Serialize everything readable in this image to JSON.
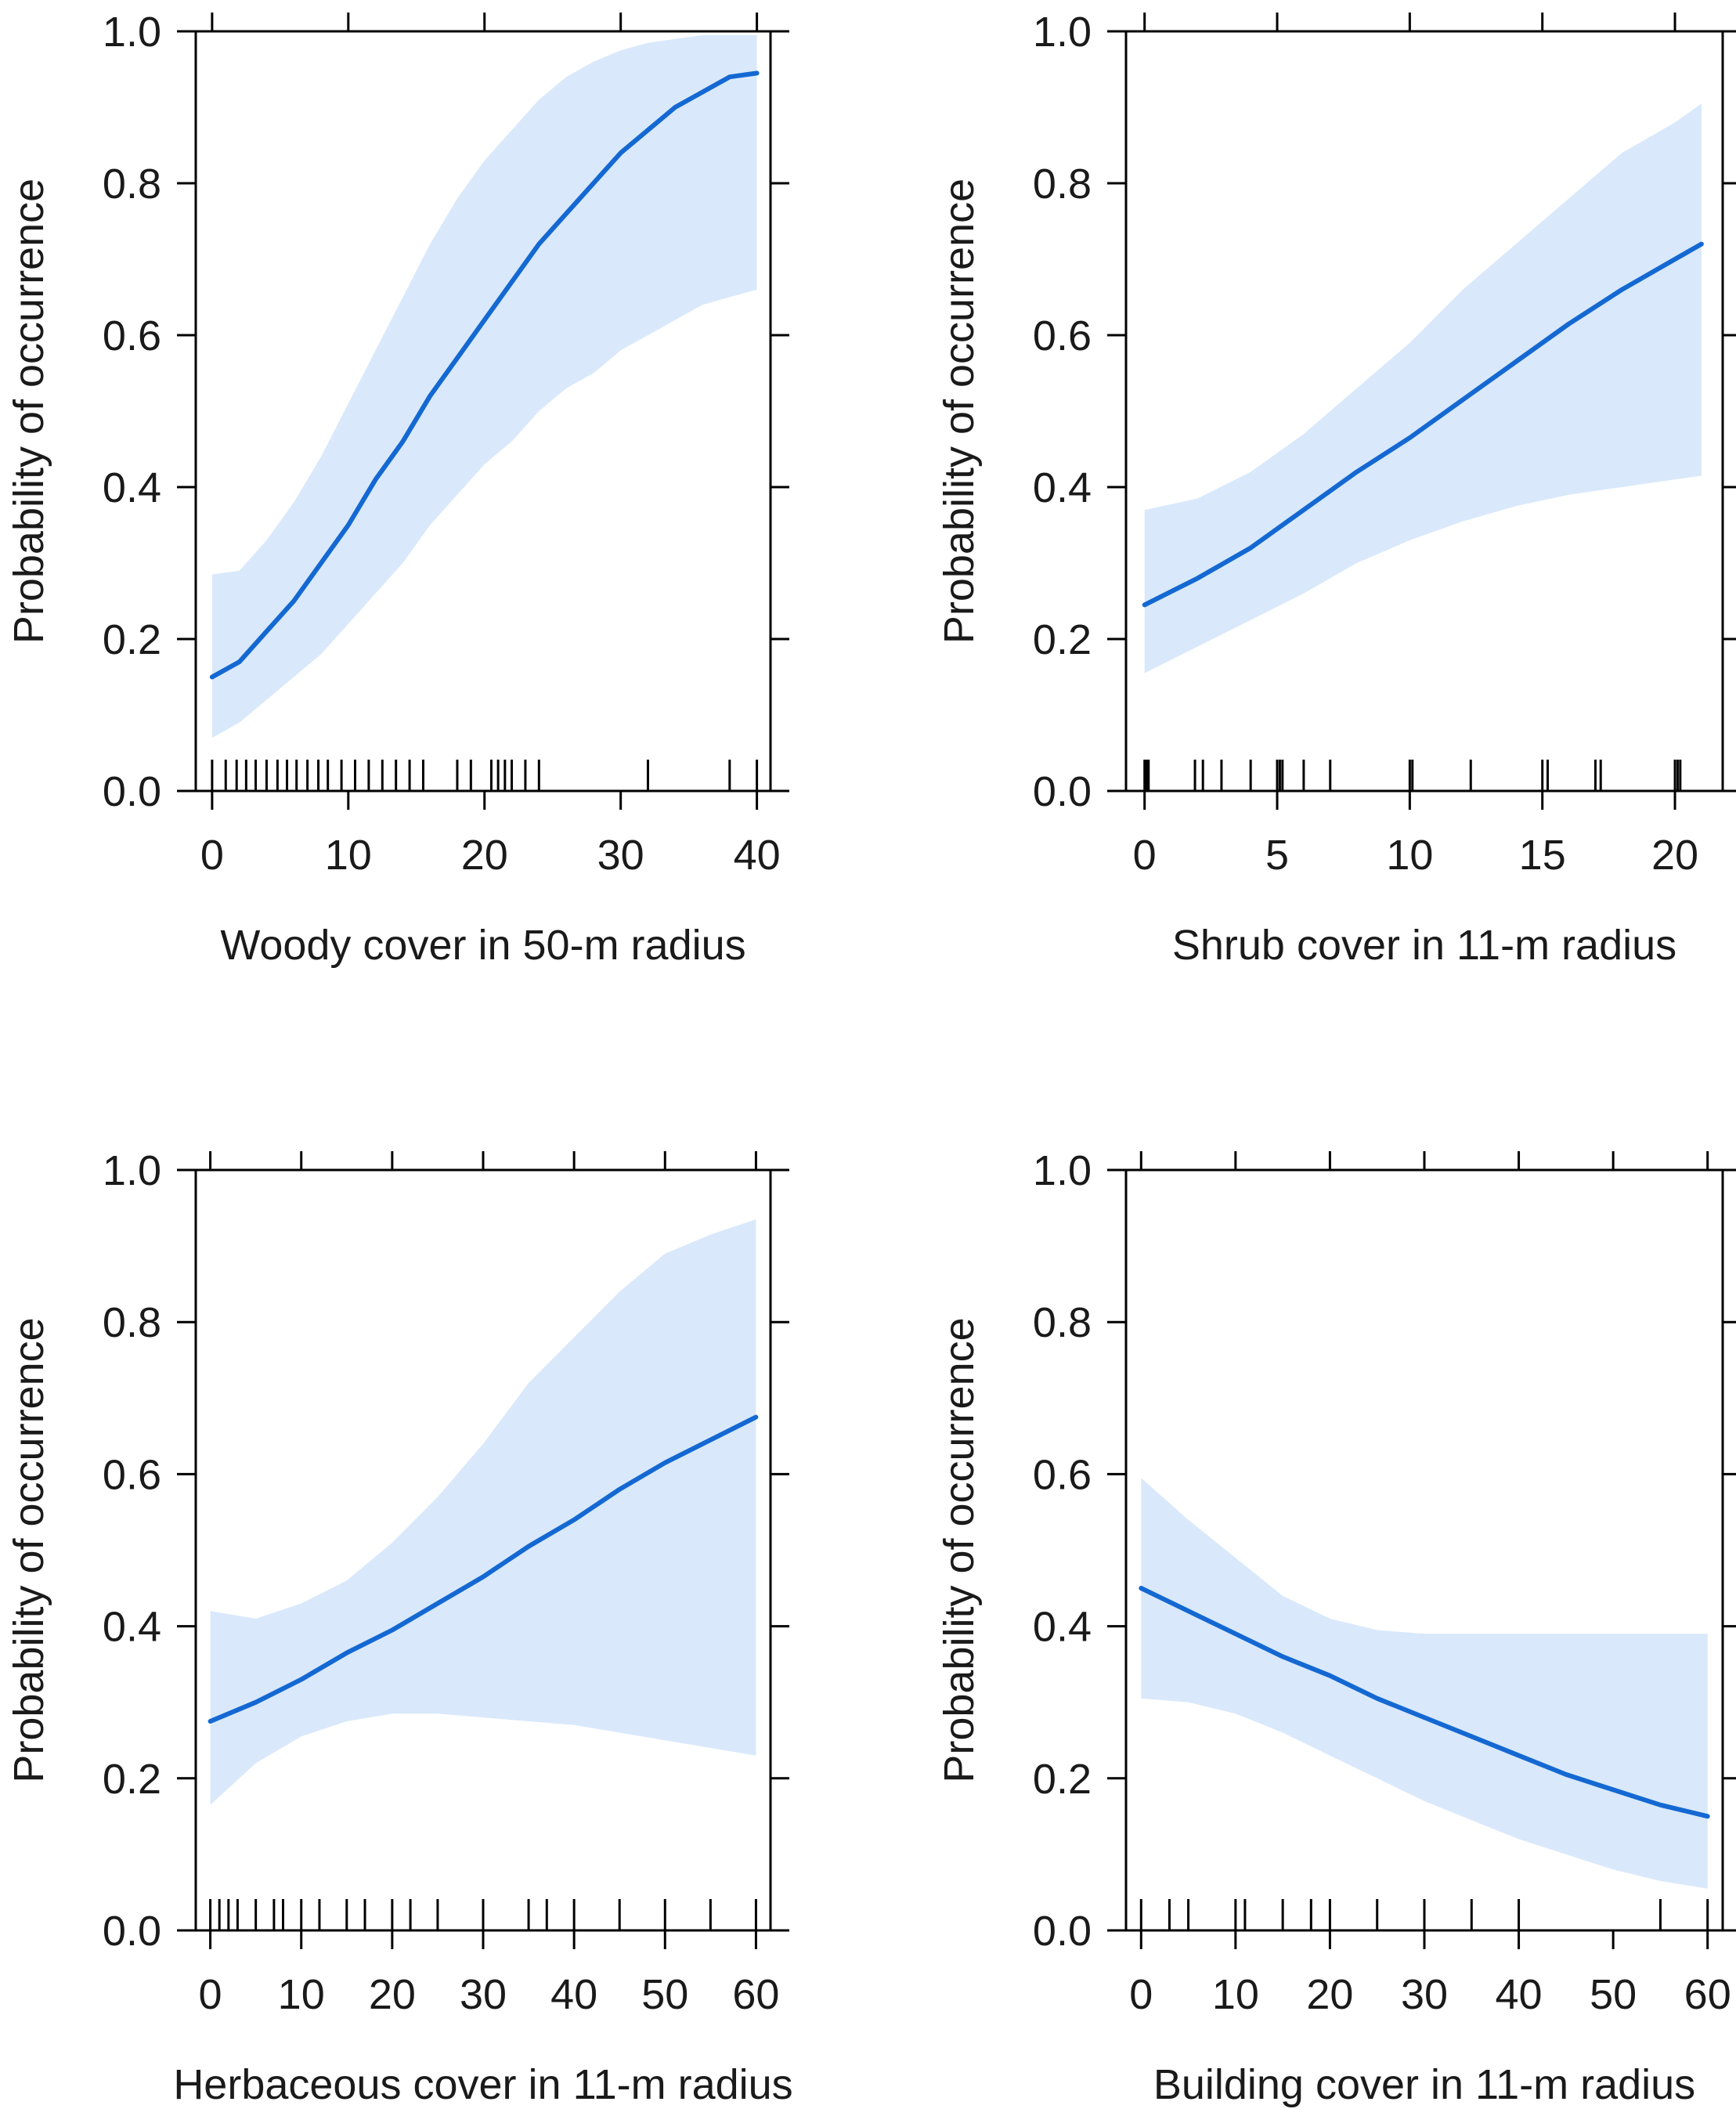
{
  "colors": {
    "band": "#d9e9fb",
    "line": "#1468d2",
    "axis": "#000000",
    "text": "#1a1a1a"
  },
  "chart_data": [
    {
      "type": "line",
      "title": "",
      "xlabel": "Woody cover in 50-m radius",
      "ylabel": "Probability of occurrence",
      "xlim": [
        -1.2,
        41
      ],
      "ylim": [
        0,
        1
      ],
      "xticks": [
        0,
        10,
        20,
        30,
        40
      ],
      "xtick_labels": [
        "0",
        "10",
        "20",
        "30",
        "40"
      ],
      "yticks": [
        0,
        0.2,
        0.4,
        0.6,
        0.8,
        1.0
      ],
      "ytick_labels": [
        "0.0",
        "0.2",
        "0.4",
        "0.6",
        "0.8",
        "1.0"
      ],
      "series": [
        {
          "name": "fit",
          "x": [
            0,
            2,
            4,
            6,
            8,
            10,
            12,
            14,
            16,
            18,
            20,
            22,
            24,
            26,
            28,
            30,
            32,
            34,
            36,
            38,
            40
          ],
          "values": [
            0.15,
            0.17,
            0.21,
            0.25,
            0.3,
            0.35,
            0.41,
            0.46,
            0.52,
            0.57,
            0.62,
            0.67,
            0.72,
            0.76,
            0.8,
            0.84,
            0.87,
            0.9,
            0.92,
            0.94,
            0.945
          ]
        },
        {
          "name": "upper",
          "x": [
            0,
            2,
            4,
            6,
            8,
            10,
            12,
            14,
            16,
            18,
            20,
            22,
            24,
            26,
            28,
            30,
            32,
            34,
            36,
            38,
            40
          ],
          "values": [
            0.285,
            0.29,
            0.33,
            0.38,
            0.44,
            0.51,
            0.58,
            0.65,
            0.72,
            0.78,
            0.83,
            0.87,
            0.91,
            0.94,
            0.96,
            0.975,
            0.985,
            0.99,
            0.995,
            0.995,
            0.995
          ]
        },
        {
          "name": "lower",
          "x": [
            0,
            2,
            4,
            6,
            8,
            10,
            12,
            14,
            16,
            18,
            20,
            22,
            24,
            26,
            28,
            30,
            32,
            34,
            36,
            38,
            40
          ],
          "values": [
            0.07,
            0.09,
            0.12,
            0.15,
            0.18,
            0.22,
            0.26,
            0.3,
            0.35,
            0.39,
            0.43,
            0.46,
            0.5,
            0.53,
            0.55,
            0.58,
            0.6,
            0.62,
            0.64,
            0.65,
            0.66
          ]
        }
      ],
      "rug": [
        0,
        1,
        1.8,
        2.5,
        3.2,
        4,
        4.8,
        5.5,
        6.2,
        7,
        7.8,
        8.5,
        9.5,
        10.5,
        11.5,
        12.5,
        13.5,
        14.5,
        15.5,
        18,
        19,
        20.5,
        21,
        21.5,
        22,
        23,
        24,
        32,
        38,
        40
      ]
    },
    {
      "type": "line",
      "title": "",
      "xlabel": "Shrub cover in 11-m radius",
      "ylabel": "Probability of occurrence",
      "xlim": [
        -0.7,
        21.8
      ],
      "ylim": [
        0,
        1
      ],
      "xticks": [
        0,
        5,
        10,
        15,
        20
      ],
      "xtick_labels": [
        "0",
        "5",
        "10",
        "15",
        "20"
      ],
      "yticks": [
        0,
        0.2,
        0.4,
        0.6,
        0.8,
        1.0
      ],
      "ytick_labels": [
        "0.0",
        "0.2",
        "0.4",
        "0.6",
        "0.8",
        "1.0"
      ],
      "series": [
        {
          "name": "fit",
          "x": [
            0,
            2,
            4,
            6,
            8,
            10,
            12,
            14,
            16,
            18,
            20,
            21
          ],
          "values": [
            0.245,
            0.28,
            0.32,
            0.37,
            0.42,
            0.465,
            0.515,
            0.565,
            0.615,
            0.66,
            0.7,
            0.72
          ]
        },
        {
          "name": "upper",
          "x": [
            0,
            2,
            4,
            6,
            8,
            10,
            12,
            14,
            16,
            18,
            20,
            21
          ],
          "values": [
            0.37,
            0.385,
            0.42,
            0.47,
            0.53,
            0.59,
            0.66,
            0.72,
            0.78,
            0.84,
            0.88,
            0.905
          ]
        },
        {
          "name": "lower",
          "x": [
            0,
            2,
            4,
            6,
            8,
            10,
            12,
            14,
            16,
            18,
            20,
            21
          ],
          "values": [
            0.155,
            0.19,
            0.225,
            0.26,
            0.3,
            0.33,
            0.355,
            0.375,
            0.39,
            0.4,
            0.41,
            0.415
          ]
        }
      ],
      "rug": [
        0,
        0.05,
        0.1,
        0.15,
        1.9,
        2.2,
        2.9,
        4,
        5,
        5.1,
        5.2,
        6,
        7,
        10,
        10.1,
        12.3,
        15,
        15.2,
        17,
        17.2,
        20,
        20.1,
        20.2
      ]
    },
    {
      "type": "line",
      "title": "",
      "xlabel": "Herbaceous cover in 11-m radius",
      "ylabel": "Probability of occurrence",
      "xlim": [
        -1.6,
        61.6
      ],
      "ylim": [
        0,
        1
      ],
      "xticks": [
        0,
        10,
        20,
        30,
        40,
        50,
        60
      ],
      "xtick_labels": [
        "0",
        "10",
        "20",
        "30",
        "40",
        "50",
        "60"
      ],
      "yticks": [
        0,
        0.2,
        0.4,
        0.6,
        0.8,
        1.0
      ],
      "ytick_labels": [
        "0.0",
        "0.2",
        "0.4",
        "0.6",
        "0.8",
        "1.0"
      ],
      "series": [
        {
          "name": "fit",
          "x": [
            0,
            5,
            10,
            15,
            20,
            25,
            30,
            35,
            40,
            45,
            50,
            55,
            60
          ],
          "values": [
            0.275,
            0.3,
            0.33,
            0.365,
            0.395,
            0.43,
            0.465,
            0.505,
            0.54,
            0.58,
            0.615,
            0.645,
            0.675
          ]
        },
        {
          "name": "upper",
          "x": [
            0,
            5,
            10,
            15,
            20,
            25,
            30,
            35,
            40,
            45,
            50,
            55,
            60
          ],
          "values": [
            0.42,
            0.41,
            0.43,
            0.46,
            0.51,
            0.57,
            0.64,
            0.72,
            0.78,
            0.84,
            0.89,
            0.915,
            0.935
          ]
        },
        {
          "name": "lower",
          "x": [
            0,
            5,
            10,
            15,
            20,
            25,
            30,
            35,
            40,
            45,
            50,
            55,
            60
          ],
          "values": [
            0.165,
            0.22,
            0.255,
            0.275,
            0.285,
            0.285,
            0.28,
            0.275,
            0.27,
            0.26,
            0.25,
            0.24,
            0.23
          ]
        }
      ],
      "rug": [
        0,
        1,
        2,
        3,
        5,
        7,
        8,
        10,
        12,
        15,
        17,
        20,
        22,
        25,
        30,
        35,
        37,
        40,
        45,
        50,
        55,
        60
      ]
    },
    {
      "type": "line",
      "title": "",
      "xlabel": "Building cover in 11-m radius",
      "ylabel": "Probability of occurrence",
      "xlim": [
        -1.6,
        61.6
      ],
      "ylim": [
        0,
        1
      ],
      "xticks": [
        0,
        10,
        20,
        30,
        40,
        50,
        60
      ],
      "xtick_labels": [
        "0",
        "10",
        "20",
        "30",
        "40",
        "50",
        "60"
      ],
      "yticks": [
        0,
        0.2,
        0.4,
        0.6,
        0.8,
        1.0
      ],
      "ytick_labels": [
        "0.0",
        "0.2",
        "0.4",
        "0.6",
        "0.8",
        "1.0"
      ],
      "series": [
        {
          "name": "fit",
          "x": [
            0,
            5,
            10,
            15,
            20,
            25,
            30,
            35,
            40,
            45,
            50,
            55,
            60
          ],
          "values": [
            0.45,
            0.42,
            0.39,
            0.36,
            0.335,
            0.305,
            0.28,
            0.255,
            0.23,
            0.205,
            0.185,
            0.165,
            0.15
          ]
        },
        {
          "name": "upper",
          "x": [
            0,
            5,
            10,
            15,
            20,
            25,
            30,
            35,
            40,
            45,
            50,
            55,
            60
          ],
          "values": [
            0.595,
            0.54,
            0.49,
            0.44,
            0.41,
            0.395,
            0.39,
            0.39,
            0.39,
            0.39,
            0.39,
            0.39,
            0.39
          ]
        },
        {
          "name": "lower",
          "x": [
            0,
            5,
            10,
            15,
            20,
            25,
            30,
            35,
            40,
            45,
            50,
            55,
            60
          ],
          "values": [
            0.305,
            0.3,
            0.285,
            0.26,
            0.23,
            0.2,
            0.17,
            0.145,
            0.12,
            0.1,
            0.08,
            0.065,
            0.055
          ]
        }
      ],
      "rug": [
        0,
        3,
        5,
        10,
        11,
        15,
        18,
        20,
        25,
        30,
        35,
        40,
        55,
        60
      ]
    }
  ]
}
